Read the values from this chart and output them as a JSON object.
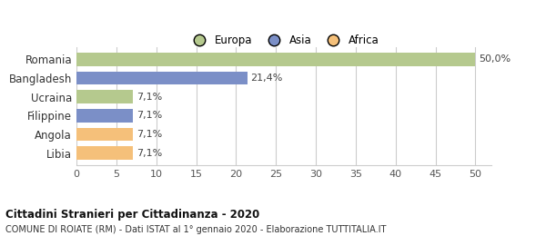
{
  "categories": [
    "Romania",
    "Bangladesh",
    "Ucraina",
    "Filippine",
    "Angola",
    "Libia"
  ],
  "values": [
    50.0,
    21.4,
    7.1,
    7.1,
    7.1,
    7.1
  ],
  "labels": [
    "50,0%",
    "21,4%",
    "7,1%",
    "7,1%",
    "7,1%",
    "7,1%"
  ],
  "colors": [
    "#b5c98e",
    "#7b8fc7",
    "#b5c98e",
    "#7b8fc7",
    "#f5c07a",
    "#f5c07a"
  ],
  "legend": [
    {
      "label": "Europa",
      "color": "#b5c98e"
    },
    {
      "label": "Asia",
      "color": "#7b8fc7"
    },
    {
      "label": "Africa",
      "color": "#f5c07a"
    }
  ],
  "xlim": [
    0,
    52
  ],
  "xticks": [
    0,
    5,
    10,
    15,
    20,
    25,
    30,
    35,
    40,
    45,
    50
  ],
  "title": "Cittadini Stranieri per Cittadinanza - 2020",
  "subtitle": "COMUNE DI ROIATE (RM) - Dati ISTAT al 1° gennaio 2020 - Elaborazione TUTTITALIA.IT",
  "background_color": "#ffffff",
  "grid_color": "#cccccc"
}
